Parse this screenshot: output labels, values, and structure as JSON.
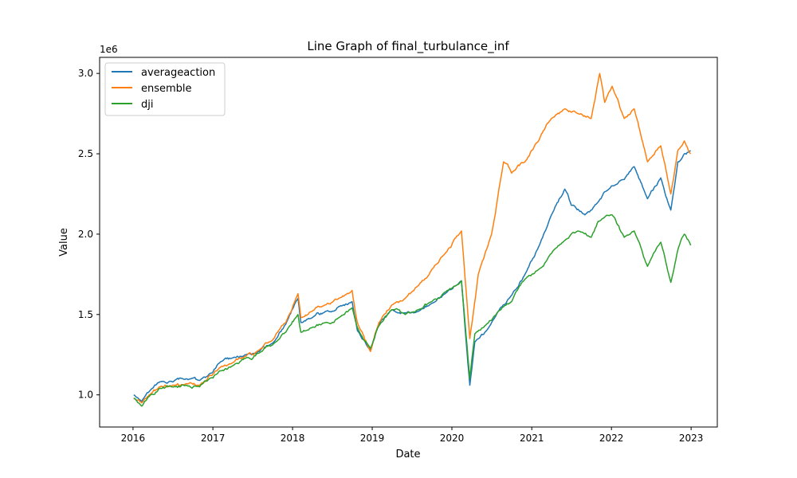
{
  "chart_data": {
    "type": "line",
    "title": "Line Graph of final_turbulance_inf",
    "xlabel": "Date",
    "ylabel": "Value",
    "y_offset_label": "1e6",
    "xlim": [
      "2015-08-01",
      "2023-05-01"
    ],
    "ylim": [
      0.8,
      3.1
    ],
    "x_ticks": [
      "2016",
      "2017",
      "2018",
      "2019",
      "2020",
      "2021",
      "2022",
      "2023"
    ],
    "y_ticks": [
      "1.0",
      "1.5",
      "2.0",
      "2.5",
      "3.0"
    ],
    "legend_position": "upper-left",
    "grid": false,
    "series": [
      {
        "name": "averageaction",
        "color": "#1f77b4",
        "points": [
          [
            "2016-01-04",
            1.0
          ],
          [
            "2016-02-10",
            0.96
          ],
          [
            "2016-03-15",
            1.02
          ],
          [
            "2016-05-01",
            1.08
          ],
          [
            "2016-07-01",
            1.08
          ],
          [
            "2016-09-01",
            1.1
          ],
          [
            "2016-11-01",
            1.09
          ],
          [
            "2016-12-15",
            1.13
          ],
          [
            "2017-02-01",
            1.2
          ],
          [
            "2017-04-01",
            1.23
          ],
          [
            "2017-06-01",
            1.25
          ],
          [
            "2017-08-01",
            1.27
          ],
          [
            "2017-10-01",
            1.32
          ],
          [
            "2017-12-01",
            1.44
          ],
          [
            "2018-01-26",
            1.6
          ],
          [
            "2018-02-08",
            1.45
          ],
          [
            "2018-04-01",
            1.48
          ],
          [
            "2018-06-01",
            1.52
          ],
          [
            "2018-08-01",
            1.55
          ],
          [
            "2018-10-01",
            1.58
          ],
          [
            "2018-10-25",
            1.4
          ],
          [
            "2018-12-24",
            1.28
          ],
          [
            "2019-02-01",
            1.44
          ],
          [
            "2019-04-01",
            1.53
          ],
          [
            "2019-06-01",
            1.51
          ],
          [
            "2019-08-01",
            1.52
          ],
          [
            "2019-10-01",
            1.57
          ],
          [
            "2019-12-01",
            1.63
          ],
          [
            "2020-02-14",
            1.71
          ],
          [
            "2020-03-23",
            1.06
          ],
          [
            "2020-04-15",
            1.33
          ],
          [
            "2020-06-08",
            1.4
          ],
          [
            "2020-08-01",
            1.52
          ],
          [
            "2020-10-01",
            1.62
          ],
          [
            "2020-12-01",
            1.75
          ],
          [
            "2021-02-01",
            1.92
          ],
          [
            "2021-04-01",
            2.12
          ],
          [
            "2021-06-01",
            2.28
          ],
          [
            "2021-07-01",
            2.18
          ],
          [
            "2021-09-01",
            2.12
          ],
          [
            "2021-11-01",
            2.2
          ],
          [
            "2022-01-01",
            2.3
          ],
          [
            "2022-03-01",
            2.34
          ],
          [
            "2022-04-15",
            2.42
          ],
          [
            "2022-06-15",
            2.22
          ],
          [
            "2022-08-15",
            2.35
          ],
          [
            "2022-09-30",
            2.15
          ],
          [
            "2022-11-01",
            2.45
          ],
          [
            "2022-12-01",
            2.5
          ],
          [
            "2022-12-30",
            2.52
          ]
        ]
      },
      {
        "name": "ensemble",
        "color": "#ff7f0e",
        "points": [
          [
            "2016-01-04",
            0.98
          ],
          [
            "2016-02-10",
            0.95
          ],
          [
            "2016-03-15",
            1.0
          ],
          [
            "2016-05-01",
            1.05
          ],
          [
            "2016-07-01",
            1.06
          ],
          [
            "2016-09-01",
            1.07
          ],
          [
            "2016-11-01",
            1.06
          ],
          [
            "2016-12-15",
            1.12
          ],
          [
            "2017-02-01",
            1.17
          ],
          [
            "2017-04-01",
            1.2
          ],
          [
            "2017-06-01",
            1.24
          ],
          [
            "2017-08-01",
            1.28
          ],
          [
            "2017-10-01",
            1.34
          ],
          [
            "2017-12-01",
            1.45
          ],
          [
            "2018-01-26",
            1.63
          ],
          [
            "2018-02-08",
            1.48
          ],
          [
            "2018-04-01",
            1.52
          ],
          [
            "2018-06-01",
            1.56
          ],
          [
            "2018-08-01",
            1.6
          ],
          [
            "2018-10-01",
            1.65
          ],
          [
            "2018-10-25",
            1.45
          ],
          [
            "2018-12-24",
            1.27
          ],
          [
            "2019-02-01",
            1.45
          ],
          [
            "2019-04-01",
            1.56
          ],
          [
            "2019-06-01",
            1.6
          ],
          [
            "2019-08-01",
            1.68
          ],
          [
            "2019-10-01",
            1.78
          ],
          [
            "2019-12-01",
            1.88
          ],
          [
            "2020-02-14",
            2.02
          ],
          [
            "2020-03-23",
            1.35
          ],
          [
            "2020-05-01",
            1.75
          ],
          [
            "2020-07-01",
            2.0
          ],
          [
            "2020-08-25",
            2.45
          ],
          [
            "2020-10-01",
            2.38
          ],
          [
            "2020-12-01",
            2.45
          ],
          [
            "2021-02-01",
            2.58
          ],
          [
            "2021-04-01",
            2.72
          ],
          [
            "2021-06-01",
            2.78
          ],
          [
            "2021-08-01",
            2.75
          ],
          [
            "2021-09-30",
            2.72
          ],
          [
            "2021-11-08",
            3.0
          ],
          [
            "2021-12-01",
            2.82
          ],
          [
            "2022-01-04",
            2.92
          ],
          [
            "2022-03-01",
            2.72
          ],
          [
            "2022-04-15",
            2.78
          ],
          [
            "2022-06-15",
            2.45
          ],
          [
            "2022-08-15",
            2.55
          ],
          [
            "2022-09-30",
            2.25
          ],
          [
            "2022-11-01",
            2.52
          ],
          [
            "2022-12-01",
            2.58
          ],
          [
            "2022-12-30",
            2.5
          ]
        ]
      },
      {
        "name": "dji",
        "color": "#2ca02c",
        "points": [
          [
            "2016-01-04",
            0.98
          ],
          [
            "2016-02-10",
            0.93
          ],
          [
            "2016-03-15",
            0.99
          ],
          [
            "2016-05-01",
            1.04
          ],
          [
            "2016-07-01",
            1.05
          ],
          [
            "2016-09-01",
            1.06
          ],
          [
            "2016-11-01",
            1.05
          ],
          [
            "2016-12-15",
            1.1
          ],
          [
            "2017-02-01",
            1.15
          ],
          [
            "2017-04-01",
            1.18
          ],
          [
            "2017-06-01",
            1.23
          ],
          [
            "2017-08-01",
            1.26
          ],
          [
            "2017-10-01",
            1.31
          ],
          [
            "2017-12-01",
            1.39
          ],
          [
            "2018-01-26",
            1.5
          ],
          [
            "2018-02-08",
            1.39
          ],
          [
            "2018-04-01",
            1.42
          ],
          [
            "2018-06-01",
            1.45
          ],
          [
            "2018-08-01",
            1.48
          ],
          [
            "2018-10-01",
            1.54
          ],
          [
            "2018-10-25",
            1.42
          ],
          [
            "2018-12-24",
            1.29
          ],
          [
            "2019-02-01",
            1.43
          ],
          [
            "2019-04-01",
            1.53
          ],
          [
            "2019-06-01",
            1.5
          ],
          [
            "2019-08-01",
            1.53
          ],
          [
            "2019-10-01",
            1.58
          ],
          [
            "2019-12-01",
            1.64
          ],
          [
            "2020-02-14",
            1.71
          ],
          [
            "2020-03-23",
            1.1
          ],
          [
            "2020-04-15",
            1.38
          ],
          [
            "2020-06-08",
            1.44
          ],
          [
            "2020-08-01",
            1.52
          ],
          [
            "2020-10-01",
            1.58
          ],
          [
            "2020-12-01",
            1.72
          ],
          [
            "2021-02-01",
            1.78
          ],
          [
            "2021-04-01",
            1.88
          ],
          [
            "2021-06-01",
            1.96
          ],
          [
            "2021-08-01",
            2.02
          ],
          [
            "2021-09-30",
            1.98
          ],
          [
            "2021-11-01",
            2.08
          ],
          [
            "2022-01-04",
            2.12
          ],
          [
            "2022-03-01",
            1.98
          ],
          [
            "2022-04-15",
            2.02
          ],
          [
            "2022-06-15",
            1.8
          ],
          [
            "2022-08-15",
            1.95
          ],
          [
            "2022-09-30",
            1.7
          ],
          [
            "2022-11-01",
            1.9
          ],
          [
            "2022-12-01",
            2.0
          ],
          [
            "2022-12-30",
            1.93
          ]
        ]
      }
    ]
  }
}
